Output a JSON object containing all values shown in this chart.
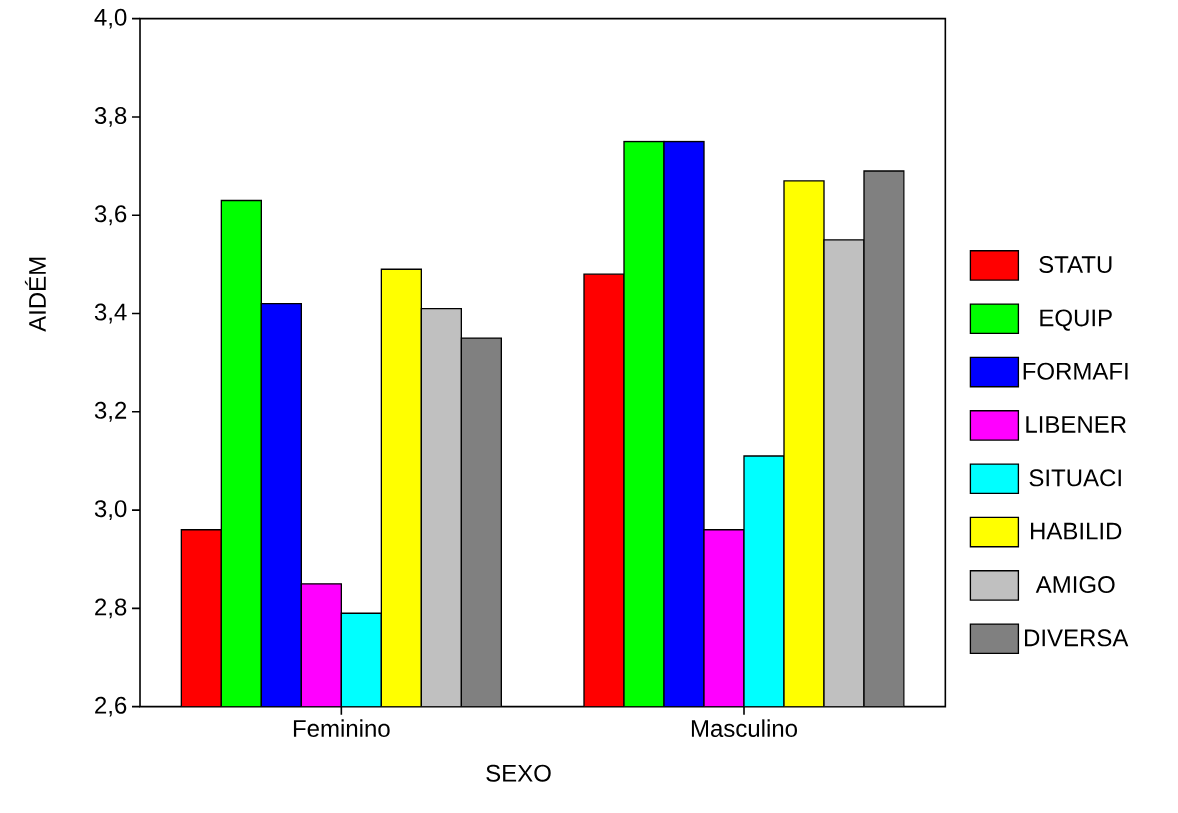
{
  "chart_data": {
    "type": "bar",
    "xlabel": "SEXO",
    "ylabel": "AIDÉM",
    "categories": [
      "Feminino",
      "Masculino"
    ],
    "series": [
      {
        "name": "STATU",
        "color": "#ff0000",
        "values": [
          2.96,
          3.48
        ]
      },
      {
        "name": "EQUIP",
        "color": "#00ff00",
        "values": [
          3.63,
          3.75
        ]
      },
      {
        "name": "FORMAFI",
        "color": "#0000ff",
        "values": [
          3.42,
          3.75
        ]
      },
      {
        "name": "LIBENER",
        "color": "#ff00ff",
        "values": [
          2.85,
          2.96
        ]
      },
      {
        "name": "SITUACI",
        "color": "#00ffff",
        "values": [
          2.79,
          3.11
        ]
      },
      {
        "name": "HABILID",
        "color": "#ffff00",
        "values": [
          3.49,
          3.67
        ]
      },
      {
        "name": "AMIGO",
        "color": "#c0c0c0",
        "values": [
          3.41,
          3.55
        ]
      },
      {
        "name": "DIVERSA",
        "color": "#808080",
        "values": [
          3.35,
          3.69
        ]
      }
    ],
    "ylim": [
      2.6,
      4.0
    ],
    "yticks": [
      {
        "value": 2.6,
        "label": "2,6"
      },
      {
        "value": 2.8,
        "label": "2,8"
      },
      {
        "value": 3.0,
        "label": "3,0"
      },
      {
        "value": 3.2,
        "label": "3,2"
      },
      {
        "value": 3.4,
        "label": "3,4"
      },
      {
        "value": 3.6,
        "label": "3,6"
      },
      {
        "value": 3.8,
        "label": "3,8"
      },
      {
        "value": 4.0,
        "label": "4,0"
      }
    ],
    "grid": false,
    "legend": "right"
  }
}
